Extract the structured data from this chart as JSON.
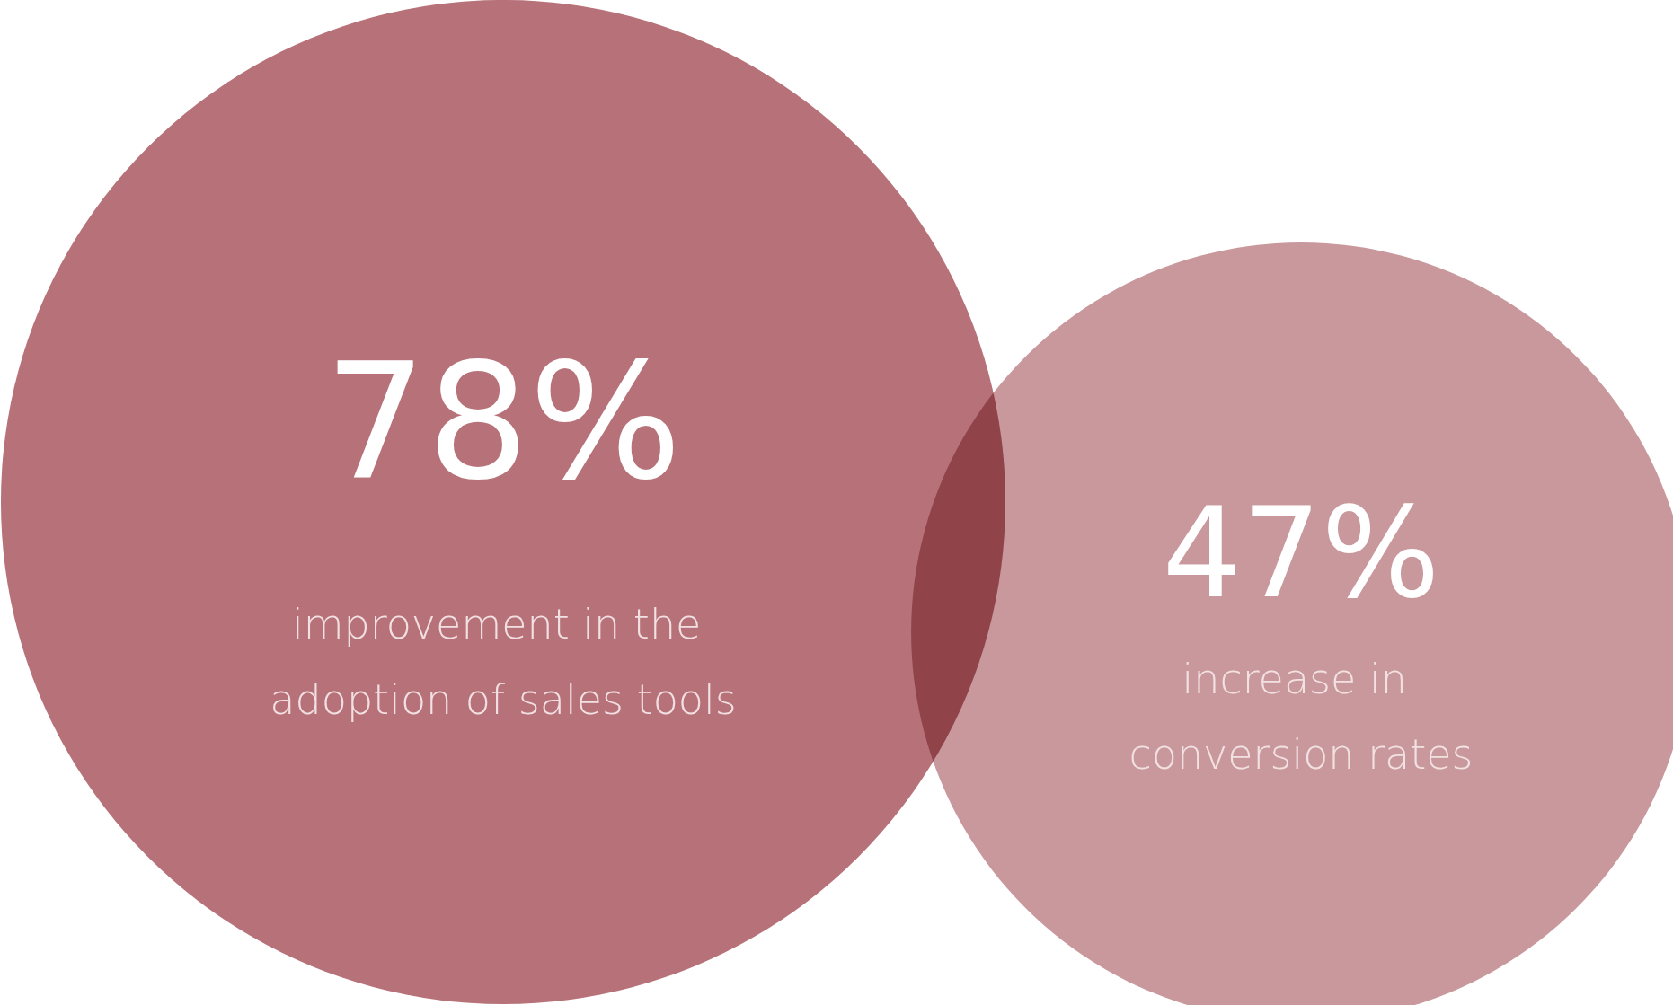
{
  "chart_data": {
    "type": "other",
    "categories": [
      "improvement in the adoption of sales tools",
      "increase in conversion rates"
    ],
    "values": [
      78,
      47
    ],
    "value_labels": [
      "78%",
      "47%"
    ],
    "colors": [
      "#b77178",
      "#c9989c"
    ]
  }
}
